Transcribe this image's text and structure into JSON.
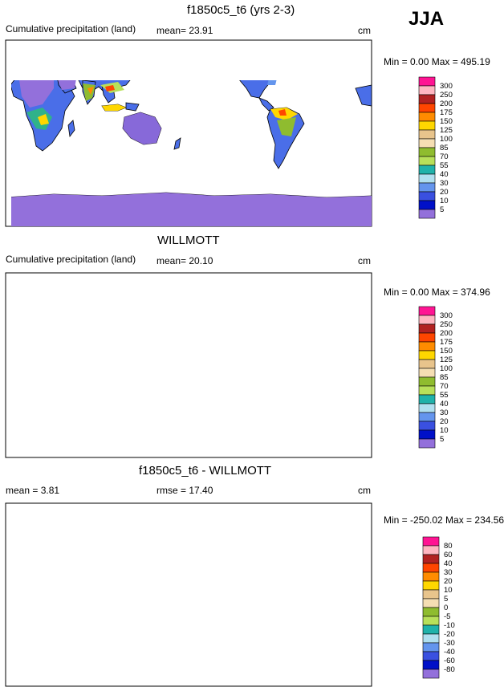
{
  "season": "JJA",
  "panels": [
    {
      "title": "f1850c5_t6 (yrs 2-3)",
      "left_label": "Cumulative precipitation (land)",
      "stat_label": "mean=  23.91",
      "unit": "cm",
      "minmax": "Min =   0.00 Max = 495.19",
      "colorbar_labels": [
        "300",
        "250",
        "200",
        "175",
        "150",
        "125",
        "100",
        "85",
        "70",
        "55",
        "40",
        "30",
        "20",
        "10",
        "5"
      ]
    },
    {
      "title": "WILLMOTT",
      "left_label": "Cumulative precipitation (land)",
      "stat_label": "mean=  20.10",
      "unit": "cm",
      "minmax": "Min =   0.00 Max = 374.96",
      "colorbar_labels": [
        "300",
        "250",
        "200",
        "175",
        "150",
        "125",
        "100",
        "85",
        "70",
        "55",
        "40",
        "30",
        "20",
        "10",
        "5"
      ]
    },
    {
      "title": "f1850c5_t6 - WILLMOTT",
      "left_label": "mean =   3.81",
      "stat_label": "rmse =  17.40",
      "unit": "cm",
      "minmax": "Min = -250.02 Max = 234.56",
      "colorbar_labels": [
        "80",
        "60",
        "40",
        "30",
        "20",
        "10",
        "5",
        "0",
        "-5",
        "-10",
        "-20",
        "-30",
        "-40",
        "-60",
        "-80"
      ]
    }
  ],
  "colors": {
    "precip_scale": [
      "#ff1493",
      "#ffb6c1",
      "#b22222",
      "#ff4500",
      "#ff8c00",
      "#ffd700",
      "#e8c48c",
      "#f5deb3",
      "#8fbc2f",
      "#b8e05a",
      "#20b2aa",
      "#b0e0f0",
      "#6495ed",
      "#3a50e0",
      "#0010c8",
      "#9370db"
    ],
    "diff_scale": [
      "#ff1493",
      "#ffb6c1",
      "#b22222",
      "#ff4500",
      "#ff8c00",
      "#ffd700",
      "#e8c48c",
      "#f5deb3",
      "#8fbc2f",
      "#b8e05a",
      "#20b2aa",
      "#b0e0f0",
      "#6495ed",
      "#3a50e0",
      "#0010c8",
      "#9370db"
    ]
  }
}
